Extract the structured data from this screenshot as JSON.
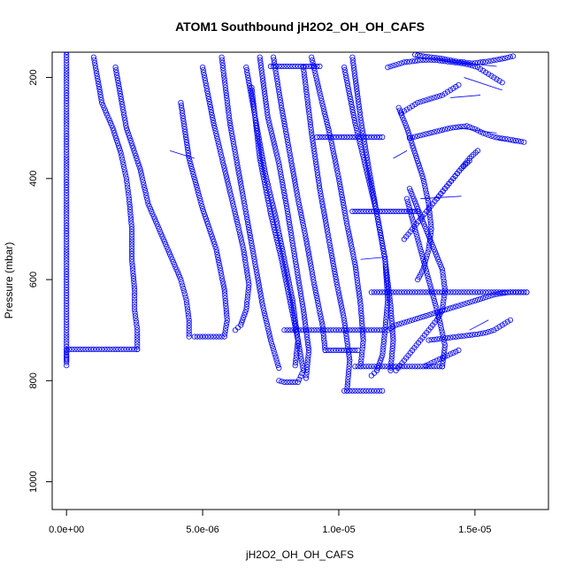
{
  "chart_data": {
    "type": "scatter",
    "title": "ATOM1 Southbound jH2O2_OH_OH_CAFS",
    "xlabel": "jH2O2_OH_OH_CAFS",
    "ylabel": "Pressure (mbar)",
    "xlim": [
      -5.25e-07,
      1.77e-05
    ],
    "ylim": [
      1055,
      150
    ],
    "y_reversed": true,
    "grid": false,
    "legend": "none",
    "x_ticks": [
      {
        "value": 0,
        "label": "0.0e+00"
      },
      {
        "value": 5e-06,
        "label": "5.0e-06"
      },
      {
        "value": 1e-05,
        "label": "1.0e-05"
      },
      {
        "value": 1.5e-05,
        "label": "1.5e-05"
      }
    ],
    "y_ticks": [
      {
        "value": 200,
        "label": "200"
      },
      {
        "value": 400,
        "label": "400"
      },
      {
        "value": 600,
        "label": "600"
      },
      {
        "value": 800,
        "label": "800"
      },
      {
        "value": 1000,
        "label": "1000"
      }
    ],
    "marker_color": "#0000ff",
    "series": [
      {
        "x": [
          0,
          0,
          0,
          0,
          0,
          0,
          0,
          0,
          0,
          1e-07,
          5e-07,
          1e-06,
          1.5e-06,
          2e-06,
          2.5e-06,
          2.6e-06
        ],
        "y": [
          150,
          300,
          450,
          600,
          700,
          760,
          770,
          745,
          740,
          738,
          738,
          738,
          738,
          738,
          738,
          738
        ]
      },
      {
        "x": [
          2.6e-06,
          2.6e-06,
          2.5e-06,
          2.5e-06,
          2.4e-06,
          2.4e-06,
          2.3e-06,
          2.2e-06,
          2e-06,
          1.7e-06,
          1.3e-06,
          1e-06
        ],
        "y": [
          738,
          700,
          660,
          620,
          560,
          500,
          440,
          400,
          350,
          300,
          250,
          160
        ]
      },
      {
        "x": [
          4.5e-06,
          4.5e-06,
          4.4e-06,
          4.2e-06,
          3.8e-06,
          3.4e-06,
          3e-06,
          2.7e-06,
          2.2e-06,
          1.8e-06
        ],
        "y": [
          713,
          680,
          640,
          600,
          550,
          500,
          450,
          380,
          300,
          180
        ]
      },
      {
        "x": [
          4.7e-06,
          5e-06,
          5.3e-06,
          5.6e-06,
          5.8e-06,
          5.9e-06,
          5.8e-06,
          5.5e-06,
          5e-06,
          4.5e-06,
          4.2e-06
        ],
        "y": [
          713,
          713,
          713,
          713,
          713,
          680,
          620,
          540,
          460,
          360,
          250
        ]
      },
      {
        "x": [
          6.2e-06,
          6.4e-06,
          6.6e-06,
          6.7e-06,
          6.5e-06,
          6.2e-06,
          5.8e-06,
          5.4e-06,
          5e-06
        ],
        "y": [
          700,
          690,
          660,
          610,
          540,
          470,
          380,
          290,
          180
        ]
      },
      {
        "x": [
          7.8e-06,
          7.5e-06,
          7.2e-06,
          6.9e-06,
          6.6e-06,
          6.3e-06,
          6e-06,
          5.7e-06
        ],
        "y": [
          775,
          720,
          650,
          560,
          470,
          380,
          290,
          160
        ]
      },
      {
        "x": [
          7.8e-06,
          8e-06,
          8.2e-06,
          8.5e-06,
          8.7e-06,
          8.5e-06,
          8.2e-06,
          7.9e-06,
          7.5e-06,
          7.1e-06,
          6.8e-06
        ],
        "y": [
          800,
          803,
          803,
          803,
          780,
          720,
          640,
          560,
          470,
          360,
          220
        ]
      },
      {
        "x": [
          8e-06,
          8.2e-06,
          8.5e-06,
          8.8e-06,
          9e-06,
          9.2e-06,
          9.4e-06,
          9.6e-06,
          9.8e-06,
          1e-05,
          1.02e-05,
          1.05e-05,
          1.08e-05,
          1.11e-05,
          1.14e-05,
          1.17e-05
        ],
        "y": [
          700,
          700,
          700,
          700,
          700,
          700,
          700,
          700,
          700,
          700,
          700,
          700,
          700,
          700,
          700,
          700
        ]
      },
      {
        "x": [
          8.4e-06,
          8.5e-06,
          8.3e-06,
          8e-06,
          7.7e-06,
          7.3e-06,
          7e-06,
          6.6e-06
        ],
        "y": [
          770,
          720,
          640,
          560,
          480,
          390,
          300,
          180
        ]
      },
      {
        "x": [
          8.8e-06,
          8.9e-06,
          8.7e-06,
          8.4e-06,
          8.1e-06,
          7.8e-06,
          7.4e-06,
          7.1e-06
        ],
        "y": [
          795,
          740,
          660,
          560,
          460,
          370,
          280,
          160
        ]
      },
      {
        "x": [
          9.5e-06,
          9.7e-06,
          9.9e-06,
          1.01e-05,
          1.03e-05,
          1.05e-05,
          1.07e-05
        ],
        "y": [
          740,
          740,
          740,
          740,
          740,
          740,
          740
        ]
      },
      {
        "x": [
          9.5e-06,
          9.4e-06,
          9.1e-06,
          8.8e-06,
          8.5e-06,
          8.2e-06,
          7.9e-06,
          7.6e-06
        ],
        "y": [
          740,
          690,
          610,
          520,
          440,
          350,
          260,
          160
        ]
      },
      {
        "x": [
          1.02e-05,
          1.04e-05,
          1.06e-05,
          1.08e-05,
          1.1e-05,
          1.12e-05,
          1.14e-05,
          1.16e-05
        ],
        "y": [
          820,
          820,
          820,
          820,
          820,
          820,
          820,
          820
        ]
      },
      {
        "x": [
          1.03e-05,
          1.04e-05,
          1.02e-05,
          9.9e-06,
          9.6e-06,
          9.3e-06,
          9e-06,
          8.7e-06
        ],
        "y": [
          820,
          760,
          680,
          600,
          510,
          420,
          310,
          180
        ]
      },
      {
        "x": [
          1.06e-05,
          1.08e-05,
          1.1e-05,
          1.12e-05,
          1.14e-05,
          1.16e-05,
          1.18e-05,
          1.2e-05,
          1.23e-05,
          1.26e-05,
          1.29e-05,
          1.32e-05,
          1.35e-05,
          1.38e-05
        ],
        "y": [
          772,
          772,
          772,
          772,
          772,
          772,
          772,
          772,
          772,
          772,
          772,
          772,
          772,
          772
        ]
      },
      {
        "x": [
          1.08e-05,
          1.09e-05,
          1.08e-05,
          1.06e-05,
          1.03e-05,
          1e-05,
          9.7e-06,
          9.3e-06,
          9e-06
        ],
        "y": [
          772,
          720,
          650,
          570,
          490,
          400,
          320,
          230,
          160
        ]
      },
      {
        "x": [
          1.12e-05,
          1.14e-05,
          1.16e-05,
          1.17e-05,
          1.18e-05,
          1.17e-05,
          1.14e-05,
          1.1e-05,
          1.06e-05,
          1.02e-05
        ],
        "y": [
          790,
          780,
          750,
          700,
          640,
          560,
          470,
          380,
          290,
          180
        ]
      },
      {
        "x": [
          1.19e-05,
          1.2e-05,
          1.19e-05,
          1.17e-05,
          1.14e-05,
          1.11e-05,
          1.08e-05,
          1.05e-05
        ],
        "y": [
          780,
          720,
          650,
          560,
          470,
          380,
          280,
          160
        ]
      },
      {
        "x": [
          1.05e-05,
          1.08e-05,
          1.11e-05,
          1.14e-05,
          1.17e-05,
          1.2e-05,
          1.23e-05,
          1.26e-05,
          1.29e-05
        ],
        "y": [
          465,
          465,
          465,
          465,
          465,
          465,
          465,
          465,
          465
        ]
      },
      {
        "x": [
          9.2e-06,
          9.5e-06,
          9.8e-06,
          1.01e-05,
          1.04e-05,
          1.07e-05,
          1.1e-05,
          1.13e-05,
          1.16e-05
        ],
        "y": [
          318,
          318,
          318,
          318,
          318,
          318,
          318,
          318,
          318
        ]
      },
      {
        "x": [
          7.5e-06,
          7.8e-06,
          8.1e-06,
          8.4e-06,
          8.7e-06,
          9e-06,
          9.3e-06
        ],
        "y": [
          178,
          178,
          178,
          178,
          178,
          178,
          178
        ]
      },
      {
        "x": [
          1.12e-05,
          1.15e-05,
          1.18e-05,
          1.21e-05,
          1.24e-05,
          1.27e-05,
          1.3e-05,
          1.33e-05,
          1.36e-05,
          1.39e-05,
          1.42e-05,
          1.45e-05,
          1.48e-05,
          1.51e-05,
          1.54e-05,
          1.57e-05,
          1.6e-05,
          1.63e-05,
          1.66e-05,
          1.69e-05
        ],
        "y": [
          625,
          625,
          625,
          625,
          625,
          625,
          625,
          625,
          625,
          625,
          625,
          625,
          625,
          625,
          625,
          625,
          625,
          625,
          625,
          625
        ]
      },
      {
        "x": [
          1.18e-05,
          1.21e-05,
          1.24e-05,
          1.27e-05,
          1.3e-05,
          1.33e-05,
          1.36e-05,
          1.39e-05,
          1.42e-05,
          1.45e-05,
          1.48e-05,
          1.51e-05,
          1.54e-05,
          1.57e-05,
          1.6e-05,
          1.63e-05,
          1.66e-05,
          1.69e-05
        ],
        "y": [
          700,
          690,
          685,
          680,
          675,
          670,
          665,
          660,
          655,
          650,
          645,
          640,
          635,
          630,
          627,
          625,
          625,
          625
        ]
      },
      {
        "x": [
          1.21e-05,
          1.24e-05,
          1.27e-05,
          1.3e-05,
          1.33e-05,
          1.36e-05,
          1.38e-05,
          1.39e-05,
          1.38e-05,
          1.35e-05,
          1.32e-05,
          1.29e-05,
          1.26e-05
        ],
        "y": [
          780,
          760,
          740,
          720,
          700,
          680,
          660,
          620,
          580,
          540,
          500,
          460,
          420
        ]
      },
      {
        "x": [
          1.24e-05,
          1.27e-05,
          1.3e-05,
          1.33e-05,
          1.36e-05,
          1.39e-05,
          1.42e-05,
          1.45e-05,
          1.48e-05,
          1.51e-05
        ],
        "y": [
          520,
          500,
          480,
          460,
          440,
          420,
          400,
          380,
          360,
          345
        ]
      },
      {
        "x": [
          1.26e-05,
          1.29e-05,
          1.32e-05,
          1.35e-05,
          1.38e-05,
          1.41e-05,
          1.44e-05,
          1.47e-05,
          1.5e-05,
          1.53e-05,
          1.56e-05,
          1.59e-05,
          1.62e-05,
          1.65e-05,
          1.68e-05
        ],
        "y": [
          320,
          316,
          312,
          308,
          304,
          300,
          298,
          296,
          302,
          310,
          316,
          320,
          322,
          325,
          328
        ]
      },
      {
        "x": [
          1.23e-05,
          1.26e-05,
          1.29e-05,
          1.32e-05,
          1.35e-05,
          1.38e-05,
          1.41e-05,
          1.44e-05
        ],
        "y": [
          270,
          260,
          250,
          245,
          240,
          235,
          225,
          215
        ]
      },
      {
        "x": [
          1.18e-05,
          1.21e-05,
          1.24e-05,
          1.27e-05,
          1.3e-05,
          1.33e-05,
          1.36e-05,
          1.39e-05,
          1.42e-05,
          1.45e-05,
          1.48e-05,
          1.51e-05,
          1.54e-05,
          1.57e-05,
          1.6e-05
        ],
        "y": [
          180,
          175,
          170,
          168,
          166,
          165,
          166,
          168,
          170,
          172,
          175,
          180,
          190,
          200,
          210
        ]
      },
      {
        "x": [
          1.28e-05,
          1.31e-05,
          1.34e-05,
          1.37e-05,
          1.4e-05,
          1.43e-05,
          1.46e-05,
          1.49e-05,
          1.52e-05,
          1.55e-05,
          1.58e-05,
          1.61e-05,
          1.64e-05
        ],
        "y": [
          155,
          158,
          160,
          162,
          165,
          168,
          170,
          172,
          170,
          168,
          165,
          162,
          158
        ]
      },
      {
        "x": [
          1.38e-05,
          1.39e-05,
          1.37e-05,
          1.34e-05,
          1.31e-05,
          1.28e-05,
          1.25e-05
        ],
        "y": [
          772,
          730,
          680,
          620,
          560,
          500,
          440
        ]
      },
      {
        "x": [
          1.29e-05,
          1.31e-05,
          1.33e-05,
          1.34e-05,
          1.33e-05,
          1.31e-05,
          1.28e-05,
          1.25e-05,
          1.22e-05
        ],
        "y": [
          600,
          580,
          540,
          500,
          450,
          400,
          350,
          300,
          260
        ]
      },
      {
        "x": [
          1.36e-05,
          1.39e-05,
          1.42e-05,
          1.45e-05,
          1.48e-05
        ],
        "y": [
          440,
          420,
          400,
          380,
          365
        ]
      },
      {
        "x": [
          1.33e-05,
          1.36e-05,
          1.39e-05,
          1.42e-05,
          1.45e-05,
          1.48e-05,
          1.51e-05,
          1.54e-05,
          1.57e-05,
          1.6e-05,
          1.63e-05
        ],
        "y": [
          720,
          718,
          716,
          714,
          712,
          710,
          708,
          705,
          700,
          690,
          680
        ]
      },
      {
        "x": [
          1.32e-05,
          1.34e-05,
          1.36e-05,
          1.38e-05,
          1.4e-05,
          1.42e-05,
          1.44e-05
        ],
        "y": [
          770,
          765,
          760,
          755,
          750,
          745,
          740
        ]
      }
    ],
    "connector_segments": [
      {
        "x": [
          1.28e-05,
          1.43e-05
        ],
        "y": [
          160,
          170
        ]
      },
      {
        "x": [
          1.43e-05,
          1.58e-05
        ],
        "y": [
          170,
          178
        ]
      },
      {
        "x": [
          1.46e-05,
          1.6e-05
        ],
        "y": [
          200,
          225
        ]
      },
      {
        "x": [
          1.41e-05,
          1.52e-05
        ],
        "y": [
          240,
          235
        ]
      },
      {
        "x": [
          1.44e-05,
          1.58e-05
        ],
        "y": [
          300,
          310
        ]
      },
      {
        "x": [
          1.58e-05,
          1.65e-05
        ],
        "y": [
          322,
          330
        ]
      },
      {
        "x": [
          1.3e-05,
          1.45e-05
        ],
        "y": [
          440,
          435
        ]
      },
      {
        "x": [
          1.2e-05,
          1.25e-05
        ],
        "y": [
          360,
          345
        ]
      },
      {
        "x": [
          3.8e-06,
          4.7e-06
        ],
        "y": [
          345,
          360
        ]
      },
      {
        "x": [
          1.55e-05,
          1.48e-05
        ],
        "y": [
          680,
          700
        ]
      },
      {
        "x": [
          1.08e-05,
          1.18e-05
        ],
        "y": [
          560,
          555
        ]
      }
    ]
  }
}
